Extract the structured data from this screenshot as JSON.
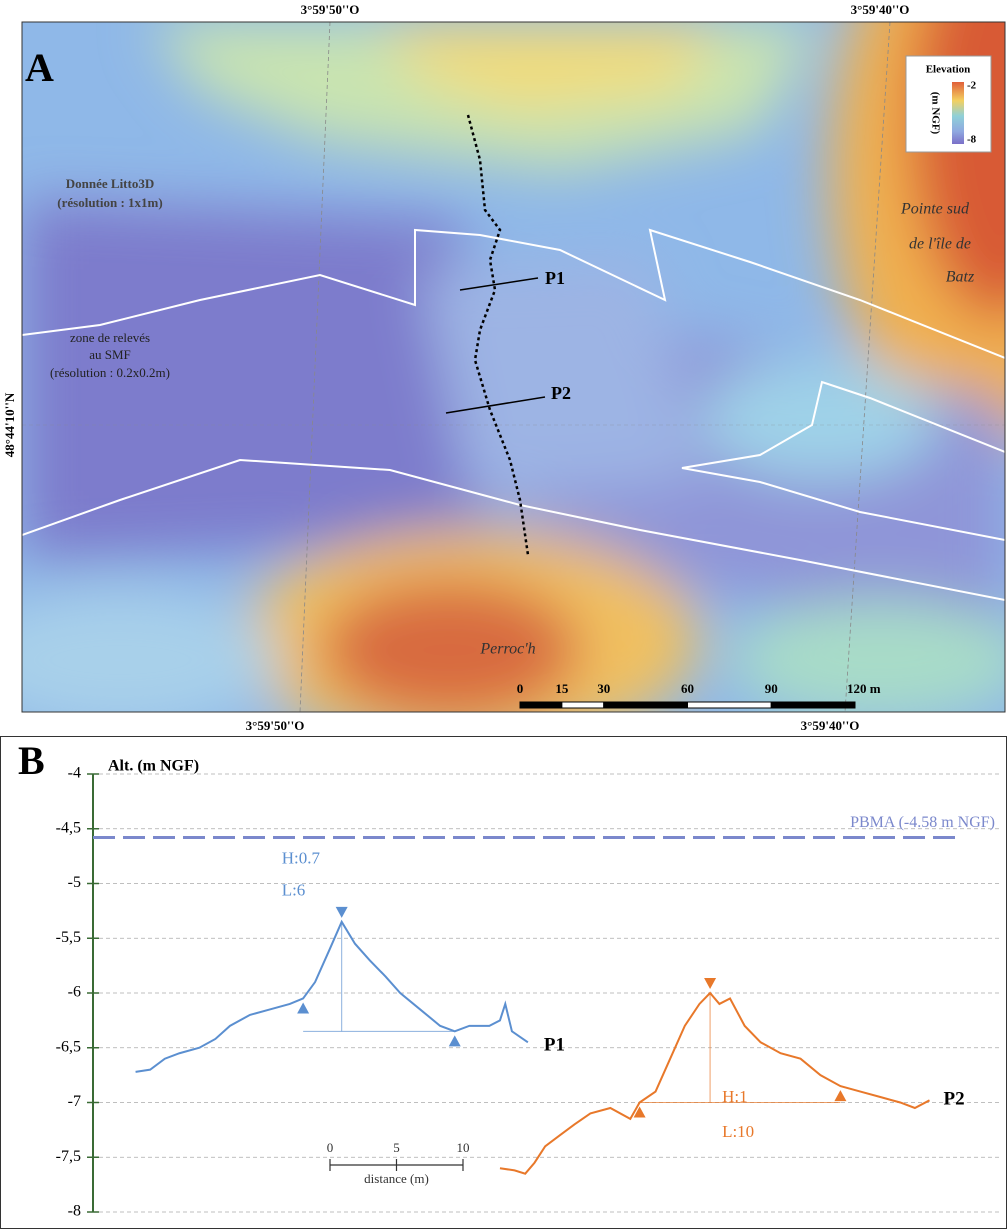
{
  "panel_a": {
    "letter": "A",
    "lon_labels": [
      "3°59'50''O",
      "3°59'40''O"
    ],
    "lat_label": "48°44'10''N",
    "legend": {
      "title": "Elevation",
      "unit": "(m NGF)",
      "max": "-2",
      "min": "-8"
    },
    "litto_label": [
      "Donnée Litto3D",
      "(résolution : 1x1m)"
    ],
    "smf_label": [
      "zone de relevés",
      "au SMF",
      "(résolution : 0.2x0.2m)"
    ],
    "profiles": [
      "P1",
      "P2"
    ],
    "place_1": [
      "Pointe sud",
      "de l'île de",
      "Batz"
    ],
    "place_2": "Perroc'h",
    "scale_bar": {
      "ticks": [
        0,
        15,
        30,
        60,
        90,
        {
          "value": 120,
          "label": "120 m"
        }
      ]
    }
  },
  "chart_data": {
    "type": "line",
    "letter": "B",
    "y_label": "Alt. (m NGF)",
    "ylim": [
      -8,
      -4
    ],
    "yticks": [
      -8,
      {
        "value": -7.5,
        "label": "-7,5"
      },
      -7,
      {
        "value": -6.5,
        "label": "-6,5"
      },
      -6,
      {
        "value": -5.5,
        "label": "-5,5"
      },
      -5,
      {
        "value": -4.5,
        "label": "-4,5"
      },
      -4
    ],
    "xlim": [
      0,
      68.2
    ],
    "grid": true,
    "reference_line": {
      "value": -4.58,
      "label": "PBMA (-4.58 m NGF)",
      "color": "#7b88cc"
    },
    "scale_bar": {
      "ticks": [
        0,
        5,
        10
      ],
      "label": "distance (m)"
    },
    "series": [
      {
        "name": "P1",
        "color": "#5b8fd0",
        "height_label": "H:0.7",
        "length_label": "L:6",
        "x": [
          3.2,
          4.3,
          5.4,
          6.5,
          8.0,
          9.2,
          10.3,
          11.8,
          13.3,
          14.8,
          15.8,
          16.7,
          17.8,
          18.7,
          19.7,
          20.8,
          22.0,
          23.1,
          24.6,
          26.1,
          27.2,
          28.3,
          29.8,
          30.6,
          31.0,
          31.5,
          32.1,
          32.7
        ],
        "values": [
          -6.72,
          -6.7,
          -6.6,
          -6.55,
          -6.5,
          -6.42,
          -6.3,
          -6.2,
          -6.15,
          -6.1,
          -6.05,
          -5.9,
          -5.6,
          -5.35,
          -5.55,
          -5.7,
          -5.85,
          -6.0,
          -6.15,
          -6.3,
          -6.35,
          -6.3,
          -6.3,
          -6.25,
          -6.1,
          -6.35,
          -6.4,
          -6.45
        ]
      },
      {
        "name": "P2",
        "color": "#e8782a",
        "height_label": "H:1",
        "length_label": "L:10",
        "x": [
          30.6,
          31.7,
          32.5,
          33.2,
          34.0,
          35.1,
          36.2,
          37.4,
          38.9,
          40.4,
          41.1,
          42.3,
          43.4,
          44.5,
          45.6,
          46.4,
          47.1,
          47.9,
          49.0,
          50.2,
          51.7,
          53.2,
          54.7,
          56.2,
          57.7,
          59.2,
          60.7,
          61.8,
          62.9
        ],
        "values": [
          -7.6,
          -7.62,
          -7.65,
          -7.55,
          -7.4,
          -7.3,
          -7.2,
          -7.1,
          -7.05,
          -7.15,
          -7.0,
          -6.9,
          -6.6,
          -6.3,
          -6.1,
          -6.0,
          -6.1,
          -6.05,
          -6.3,
          -6.45,
          -6.55,
          -6.6,
          -6.75,
          -6.85,
          -6.9,
          -6.95,
          -7.0,
          -7.05,
          -6.98
        ]
      }
    ]
  }
}
